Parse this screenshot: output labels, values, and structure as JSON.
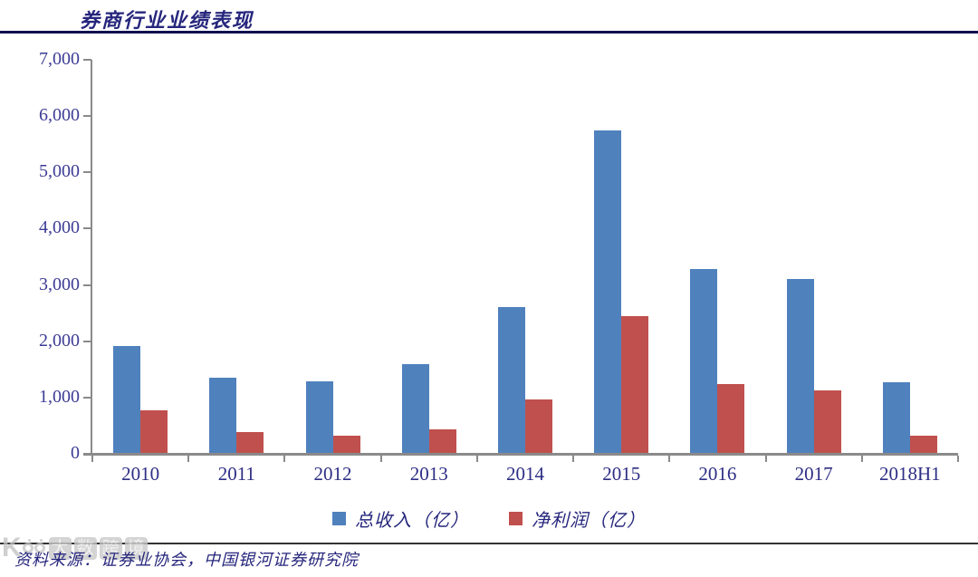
{
  "title": "券商行业业绩表现",
  "source_note": "资料来源：证券业协会，中国银河证券研究院",
  "watermark": {
    "letter": "K",
    "ring_count": 2,
    "tiles": [
      "大",
      "数",
      "跨",
      "境"
    ]
  },
  "legend": {
    "items": [
      {
        "label": "总收入（亿）",
        "color": "#4F81BD"
      },
      {
        "label": "净利润（亿）",
        "color": "#C0504D"
      }
    ]
  },
  "colors": {
    "bar_blue": "#4F81BD",
    "bar_red": "#C0504D",
    "axis_gray": "#8a8a8a",
    "text_navy": "#26267d",
    "tick_label_navy": "#3c3c96"
  },
  "chart_data": {
    "type": "bar",
    "title": "券商行业业绩表现",
    "categories": [
      "2010",
      "2011",
      "2012",
      "2013",
      "2014",
      "2015",
      "2016",
      "2017",
      "2018H1"
    ],
    "series": [
      {
        "name": "总收入（亿）",
        "color": "#4F81BD",
        "values": [
          1911,
          1360,
          1295,
          1592,
          2603,
          5752,
          3280,
          3113,
          1266
        ]
      },
      {
        "name": "净利润（亿）",
        "color": "#C0504D",
        "values": [
          776,
          394,
          329,
          440,
          966,
          2448,
          1234,
          1130,
          329
        ]
      }
    ],
    "xlabel": "",
    "ylabel": "",
    "ylim": [
      0,
      7000
    ],
    "y_tick_values": [
      7000,
      6000,
      5000,
      4000,
      3000,
      2000,
      1000,
      0
    ],
    "y_tick_labels": [
      "7,000",
      "6,000",
      "5,000",
      "4,000",
      "3,000",
      "2,000",
      "1,000",
      "0"
    ],
    "grid": false,
    "legend_position": "bottom"
  }
}
